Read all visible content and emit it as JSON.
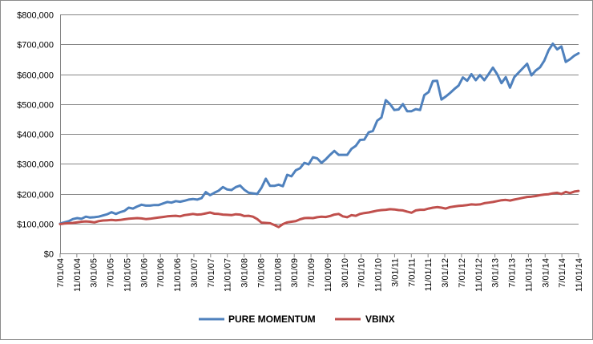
{
  "chart_data": {
    "type": "line",
    "title": "",
    "xlabel": "",
    "ylabel": "",
    "ylim": [
      0,
      800000
    ],
    "yticks": [
      "$0",
      "$100,000",
      "$200,000",
      "$300,000",
      "$400,000",
      "$500,000",
      "$600,000",
      "$700,000",
      "$800,000"
    ],
    "xticks": [
      "7/01/04",
      "11/01/04",
      "3/01/05",
      "7/01/05",
      "11/01/05",
      "3/01/06",
      "7/01/06",
      "11/01/06",
      "3/01/07",
      "7/01/07",
      "11/01/07",
      "3/01/08",
      "7/01/08",
      "11/01/08",
      "3/01/09",
      "7/01/09",
      "11/01/09",
      "3/01/10",
      "7/01/10",
      "11/01/10",
      "3/01/11",
      "7/01/11",
      "11/01/11",
      "3/01/12",
      "7/01/12",
      "11/01/12",
      "3/01/13",
      "7/01/13",
      "11/01/13",
      "3/01/14",
      "7/01/14",
      "11/01/14"
    ],
    "grid": "horizontal",
    "legend": "bottom",
    "series": [
      {
        "name": "PURE MOMENTUM",
        "color": "#4F81BD",
        "values": [
          100000,
          104000,
          108000,
          115000,
          118000,
          116000,
          123000,
          120000,
          121000,
          123000,
          127000,
          131000,
          138000,
          132000,
          138000,
          142000,
          153000,
          150000,
          157000,
          163000,
          160000,
          160000,
          162000,
          162000,
          167000,
          172000,
          170000,
          175000,
          173000,
          176000,
          180000,
          182000,
          180000,
          185000,
          205000,
          195000,
          203000,
          210000,
          222000,
          214000,
          212000,
          222000,
          227000,
          213000,
          203000,
          201000,
          199000,
          220000,
          250000,
          226000,
          226000,
          230000,
          225000,
          263000,
          258000,
          278000,
          285000,
          303000,
          298000,
          322000,
          318000,
          303000,
          315000,
          330000,
          343000,
          330000,
          330000,
          330000,
          350000,
          360000,
          380000,
          381000,
          405000,
          410000,
          444000,
          455000,
          513000,
          500000,
          480000,
          482000,
          500000,
          476000,
          476000,
          483000,
          480000,
          530000,
          540000,
          577000,
          578000,
          515000,
          525000,
          537000,
          550000,
          562000,
          589000,
          578000,
          600000,
          580000,
          597000,
          580000,
          600000,
          622000,
          600000,
          570000,
          590000,
          555000,
          590000,
          605000,
          620000,
          635000,
          596000,
          612000,
          623000,
          645000,
          680000,
          702000,
          683000,
          693000,
          641000,
          650000,
          662000,
          670000
        ]
      },
      {
        "name": "VBINX",
        "color": "#C0504D",
        "values": [
          98000,
          100000,
          101000,
          102000,
          104000,
          106000,
          107000,
          106000,
          104000,
          108000,
          110000,
          111000,
          112000,
          111000,
          112000,
          114000,
          116000,
          117000,
          118000,
          117000,
          115000,
          116000,
          118000,
          120000,
          122000,
          124000,
          125000,
          126000,
          124000,
          128000,
          130000,
          132000,
          130000,
          131000,
          134000,
          137000,
          133000,
          132000,
          130000,
          129000,
          128000,
          131000,
          130000,
          125000,
          126000,
          123000,
          115000,
          103000,
          102000,
          101000,
          95000,
          88000,
          98000,
          104000,
          106000,
          108000,
          114000,
          118000,
          119000,
          118000,
          121000,
          123000,
          122000,
          125000,
          130000,
          132000,
          124000,
          121000,
          128000,
          126000,
          132000,
          135000,
          137000,
          140000,
          143000,
          145000,
          146000,
          148000,
          147000,
          145000,
          144000,
          140000,
          136000,
          144000,
          146000,
          146000,
          150000,
          153000,
          155000,
          153000,
          150000,
          155000,
          157000,
          159000,
          160000,
          162000,
          164000,
          163000,
          164000,
          168000,
          170000,
          172000,
          175000,
          178000,
          179000,
          177000,
          180000,
          183000,
          186000,
          189000,
          190000,
          192000,
          195000,
          197000,
          198000,
          201000,
          203000,
          199000,
          206000,
          202000,
          207000,
          209000
        ]
      }
    ]
  }
}
